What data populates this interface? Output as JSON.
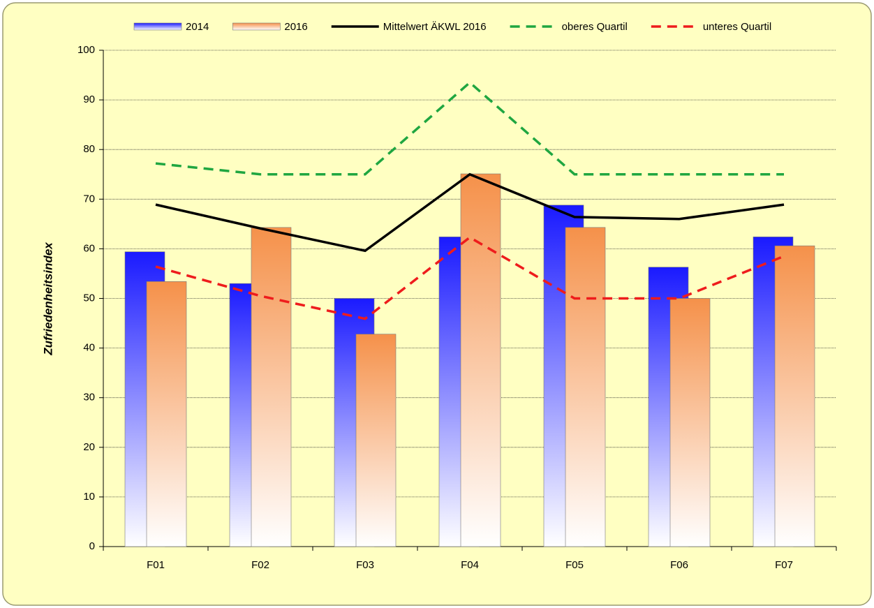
{
  "chart_data": {
    "type": "bar",
    "y_label": "Zufriedenheitsindex",
    "categories": [
      "F01",
      "F02",
      "F03",
      "F04",
      "F05",
      "F06",
      "F07"
    ],
    "series": [
      {
        "name": "2014",
        "type": "bar",
        "color": "#1a1aff",
        "values": [
          59.4,
          53,
          50,
          62.4,
          68.8,
          56.3,
          62.4
        ]
      },
      {
        "name": "2016",
        "type": "bar",
        "color": "#f5914a",
        "values": [
          53.4,
          64.3,
          42.8,
          75.1,
          64.3,
          50,
          60.6
        ]
      },
      {
        "name": "Mittelwert ÄKWL 2016",
        "type": "line",
        "dash": false,
        "color": "#000000",
        "values": [
          68.9,
          64.1,
          59.6,
          75,
          66.4,
          66,
          68.9
        ]
      },
      {
        "name": "oberes Quartil",
        "type": "line",
        "dash": true,
        "color": "#1fa640",
        "values": [
          77.2,
          75,
          75,
          93.5,
          75,
          75,
          75
        ]
      },
      {
        "name": "unteres Quartil",
        "type": "line",
        "dash": true,
        "color": "#ee1c1c",
        "values": [
          56.4,
          50.5,
          45.9,
          62.3,
          50,
          50,
          58.5
        ]
      }
    ],
    "ylim": [
      0,
      100
    ],
    "yticks": [
      0,
      10,
      20,
      30,
      40,
      50,
      60,
      70,
      80,
      90,
      100
    ],
    "grid": true,
    "legend": "top"
  }
}
